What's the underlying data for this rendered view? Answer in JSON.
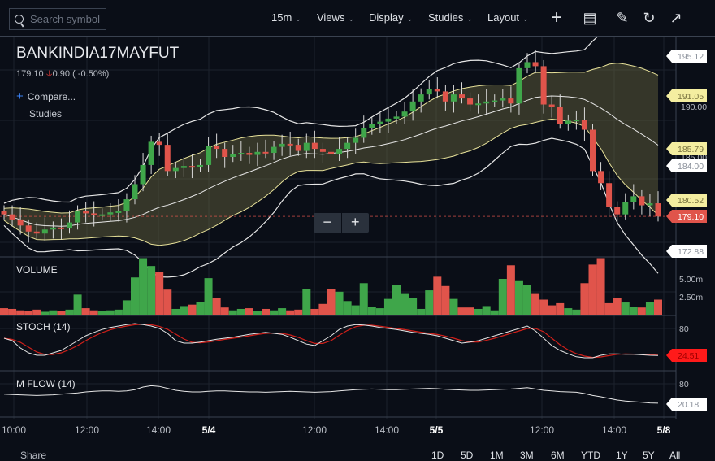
{
  "toolbar": {
    "search_placeholder": "Search symbol",
    "interval": "15m",
    "views": "Views",
    "display": "Display",
    "studies": "Studies",
    "layout": "Layout",
    "icons": [
      "crosshair-icon",
      "comment-icon",
      "draw-icon",
      "reset-icon",
      "popout-icon"
    ]
  },
  "symbol": {
    "name": "BANKINDIA17MAYFUT",
    "last": "179.10",
    "change": "0.90",
    "change_pct": "( -0.50%)",
    "direction": "down"
  },
  "overlay": {
    "compare": "Compare...",
    "studies": "Studies"
  },
  "panes": {
    "volume": "VOLUME",
    "stoch": "STOCH (14)",
    "mflow": "M FLOW (14)"
  },
  "zoom": {
    "minus": "−",
    "plus": "+"
  },
  "price_axis": {
    "ticks": [
      "190.00",
      "185.00"
    ],
    "labels": [
      {
        "text": "195.12",
        "kind": "white"
      },
      {
        "text": "191.05",
        "kind": "yellow"
      },
      {
        "text": "185.79",
        "kind": "yellow"
      },
      {
        "text": "184.00",
        "kind": "white"
      },
      {
        "text": "180.52",
        "kind": "yellow"
      },
      {
        "text": "179.10",
        "kind": "red"
      },
      {
        "text": "172.88",
        "kind": "white"
      }
    ]
  },
  "volume_axis": [
    "5.00m",
    "2.50m"
  ],
  "stoch_axis": {
    "tick": "80",
    "label": "24.51"
  },
  "mflow_axis": {
    "tick": "80",
    "label": "20.18"
  },
  "x_axis": [
    {
      "t": "10:00",
      "b": false
    },
    {
      "t": "12:00",
      "b": false
    },
    {
      "t": "14:00",
      "b": false
    },
    {
      "t": "5/4",
      "b": true
    },
    {
      "t": "12:00",
      "b": false
    },
    {
      "t": "14:00",
      "b": false
    },
    {
      "t": "5/5",
      "b": true
    },
    {
      "t": "12:00",
      "b": false
    },
    {
      "t": "14:00",
      "b": false
    },
    {
      "t": "5/8",
      "b": true
    }
  ],
  "bottom": {
    "share": "Share",
    "ranges": [
      "1D",
      "5D",
      "1M",
      "3M",
      "6M",
      "YTD",
      "1Y",
      "5Y",
      "All"
    ]
  },
  "colors": {
    "up": "#3fa64a",
    "down": "#e0544b",
    "band": "#e8e29a",
    "bg": "#0a0e17"
  },
  "chart_data": {
    "type": "candlestick",
    "interval": "15m",
    "close": [
      179.3,
      178.8,
      178.2,
      177.6,
      177.4,
      177.8,
      178.0,
      177.9,
      178.5,
      179.6,
      179.4,
      179.2,
      179.3,
      179.5,
      179.6,
      180.8,
      182.3,
      184.2,
      186.5,
      186.2,
      183.6,
      183.9,
      184.1,
      184.0,
      184.2,
      186.1,
      185.8,
      185.0,
      185.3,
      185.4,
      185.2,
      185.5,
      185.4,
      186.0,
      186.3,
      186.2,
      185.6,
      186.4,
      185.8,
      185.5,
      185.3,
      185.8,
      186.4,
      186.9,
      187.9,
      188.3,
      188.5,
      188.8,
      189.0,
      189.5,
      190.5,
      191.2,
      191.7,
      191.5,
      190.5,
      191.2,
      190.8,
      190.2,
      190.3,
      190.5,
      190.6,
      190.8,
      190.3,
      193.8,
      194.4,
      194.0,
      190.2,
      190.0,
      188.3,
      188.6,
      188.7,
      187.7,
      183.6,
      182.4,
      180.0,
      179.3,
      180.5,
      181.1,
      180.2,
      180.4,
      179.1
    ],
    "volume_m": [
      0.9,
      0.8,
      0.6,
      0.5,
      0.7,
      0.4,
      0.6,
      0.5,
      0.7,
      2.8,
      0.9,
      0.6,
      0.5,
      0.6,
      0.7,
      2.0,
      5.2,
      7.9,
      6.8,
      6.0,
      3.5,
      0.8,
      1.2,
      1.4,
      1.8,
      5.1,
      2.3,
      1.0,
      0.6,
      0.8,
      0.9,
      0.5,
      0.8,
      0.6,
      0.9,
      0.6,
      0.7,
      3.6,
      0.8,
      1.5,
      3.6,
      3.2,
      1.9,
      1.3,
      4.4,
      1.1,
      0.9,
      2.2,
      4.2,
      3.0,
      2.3,
      0.8,
      3.4,
      5.3,
      4.0,
      2.2,
      1.0,
      1.0,
      0.8,
      1.2,
      0.6,
      5.0,
      6.9,
      4.8,
      4.2,
      3.0,
      2.1,
      1.3,
      1.6,
      0.9,
      0.7,
      4.4,
      7.0,
      7.9,
      1.6,
      2.3,
      1.7,
      1.1,
      1.0,
      1.8,
      2.1
    ],
    "stoch_k": [
      60,
      55,
      40,
      30,
      25,
      25,
      30,
      35,
      45,
      55,
      65,
      72,
      78,
      82,
      85,
      88,
      90,
      88,
      85,
      80,
      70,
      55,
      50,
      50,
      52,
      55,
      58,
      60,
      62,
      65,
      68,
      70,
      72,
      70,
      68,
      62,
      55,
      48,
      45,
      55,
      65,
      78,
      85,
      88,
      87,
      85,
      82,
      80,
      78,
      75,
      72,
      70,
      68,
      65,
      60,
      55,
      50,
      52,
      55,
      60,
      65,
      70,
      75,
      80,
      85,
      75,
      60,
      45,
      35,
      28,
      22,
      20,
      20,
      25,
      28,
      28,
      27,
      27,
      26,
      25,
      24.5
    ],
    "mflow": [
      48,
      47,
      46,
      45,
      44,
      45,
      46,
      48,
      50,
      52,
      55,
      57,
      58,
      58,
      57,
      58,
      62,
      70,
      74,
      72,
      66,
      60,
      57,
      55,
      55,
      57,
      58,
      58,
      57,
      56,
      55,
      55,
      54,
      55,
      56,
      57,
      56,
      55,
      54,
      55,
      56,
      58,
      60,
      62,
      63,
      64,
      63,
      62,
      62,
      63,
      64,
      65,
      66,
      65,
      63,
      62,
      61,
      60,
      60,
      61,
      62,
      63,
      64,
      66,
      68,
      64,
      60,
      58,
      56,
      55,
      54,
      50,
      44,
      40,
      35,
      30,
      27,
      25,
      23,
      21,
      20.18
    ]
  }
}
